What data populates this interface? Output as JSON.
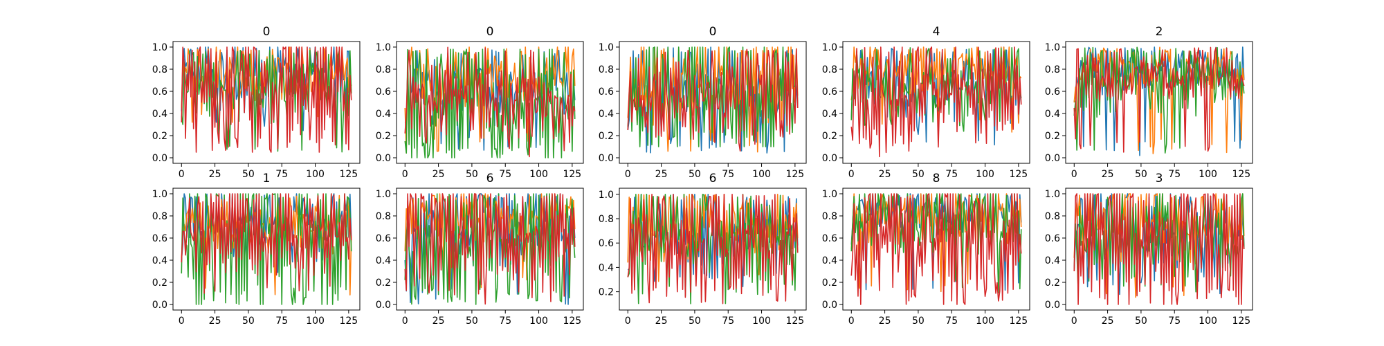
{
  "chart_data": {
    "type": "line",
    "layout": {
      "rows": 2,
      "cols": 5
    },
    "series_colors": [
      "#1f77b4",
      "#ff7f0e",
      "#2ca02c",
      "#d62728"
    ],
    "x_ticks": [
      0,
      25,
      50,
      75,
      100,
      125
    ],
    "xlim": [
      -6.35,
      133.35
    ],
    "panels": [
      {
        "title": "0",
        "ylim": [
          -0.05,
          1.05
        ],
        "y_ticks": [
          0.0,
          0.2,
          0.4,
          0.6,
          0.8,
          1.0
        ],
        "y_tick_labels": [
          "0.0",
          "0.2",
          "0.4",
          "0.6",
          "0.8",
          "1.0"
        ],
        "series": [
          {
            "seed": 11,
            "mean": 0.72,
            "spread": 0.2,
            "min": 0.22,
            "max": 1.0,
            "osc": 0.3
          },
          {
            "seed": 12,
            "mean": 0.75,
            "spread": 0.18,
            "min": 0.28,
            "max": 1.0,
            "osc": 0.3
          },
          {
            "seed": 13,
            "mean": 0.68,
            "spread": 0.22,
            "min": 0.0,
            "max": 0.97,
            "osc": 0.4
          },
          {
            "seed": 14,
            "mean": 0.62,
            "spread": 0.26,
            "min": 0.05,
            "max": 1.0,
            "osc": 0.9
          }
        ]
      },
      {
        "title": "0",
        "ylim": [
          -0.05,
          1.05
        ],
        "y_ticks": [
          0.0,
          0.2,
          0.4,
          0.6,
          0.8,
          1.0
        ],
        "y_tick_labels": [
          "0.0",
          "0.2",
          "0.4",
          "0.6",
          "0.8",
          "1.0"
        ],
        "series": [
          {
            "seed": 21,
            "mean": 0.62,
            "spread": 0.2,
            "min": 0.05,
            "max": 0.98,
            "osc": 0.3
          },
          {
            "seed": 22,
            "mean": 0.75,
            "spread": 0.18,
            "min": 0.03,
            "max": 1.0,
            "osc": 0.3
          },
          {
            "seed": 23,
            "mean": 0.45,
            "spread": 0.3,
            "min": 0.0,
            "max": 0.98,
            "osc": 0.8
          },
          {
            "seed": 24,
            "mean": 0.52,
            "spread": 0.2,
            "min": 0.0,
            "max": 1.0,
            "osc": 0.4
          }
        ]
      },
      {
        "title": "0",
        "ylim": [
          -0.05,
          1.05
        ],
        "y_ticks": [
          0.0,
          0.2,
          0.4,
          0.6,
          0.8,
          1.0
        ],
        "y_tick_labels": [
          "0.0",
          "0.2",
          "0.4",
          "0.6",
          "0.8",
          "1.0"
        ],
        "series": [
          {
            "seed": 31,
            "mean": 0.55,
            "spread": 0.25,
            "min": 0.0,
            "max": 1.0,
            "osc": 0.5
          },
          {
            "seed": 32,
            "mean": 0.66,
            "spread": 0.22,
            "min": 0.05,
            "max": 1.0,
            "osc": 0.5
          },
          {
            "seed": 33,
            "mean": 0.58,
            "spread": 0.28,
            "min": 0.1,
            "max": 1.0,
            "osc": 0.8
          },
          {
            "seed": 34,
            "mean": 0.55,
            "spread": 0.22,
            "min": 0.05,
            "max": 0.98,
            "osc": 0.5
          }
        ]
      },
      {
        "title": "4",
        "ylim": [
          -0.05,
          1.05
        ],
        "y_ticks": [
          0.0,
          0.2,
          0.4,
          0.6,
          0.8,
          1.0
        ],
        "y_tick_labels": [
          "0.0",
          "0.2",
          "0.4",
          "0.6",
          "0.8",
          "1.0"
        ],
        "series": [
          {
            "seed": 41,
            "mean": 0.66,
            "spread": 0.2,
            "min": 0.1,
            "max": 1.0,
            "osc": 0.5
          },
          {
            "seed": 42,
            "mean": 0.82,
            "spread": 0.14,
            "min": 0.2,
            "max": 1.0,
            "osc": 0.3
          },
          {
            "seed": 43,
            "mean": 0.64,
            "spread": 0.2,
            "min": 0.2,
            "max": 1.0,
            "osc": 0.4
          },
          {
            "seed": 44,
            "mean": 0.58,
            "spread": 0.22,
            "min": 0.0,
            "max": 1.0,
            "osc": 0.8
          }
        ]
      },
      {
        "title": "2",
        "ylim": [
          -0.05,
          1.05
        ],
        "y_ticks": [
          0.0,
          0.2,
          0.4,
          0.6,
          0.8,
          1.0
        ],
        "y_tick_labels": [
          "0.0",
          "0.2",
          "0.4",
          "0.6",
          "0.8",
          "1.0"
        ],
        "series": [
          {
            "seed": 51,
            "mean": 0.8,
            "spread": 0.14,
            "min": 0.0,
            "max": 1.0,
            "osc": 0.3
          },
          {
            "seed": 52,
            "mean": 0.8,
            "spread": 0.14,
            "min": 0.02,
            "max": 1.0,
            "osc": 0.3
          },
          {
            "seed": 53,
            "mean": 0.68,
            "spread": 0.18,
            "min": 0.0,
            "max": 1.0,
            "osc": 0.4
          },
          {
            "seed": 54,
            "mean": 0.75,
            "spread": 0.14,
            "min": 0.03,
            "max": 1.0,
            "osc": 0.4
          }
        ]
      },
      {
        "title": "1",
        "ylim": [
          -0.05,
          1.05
        ],
        "y_ticks": [
          0.0,
          0.2,
          0.4,
          0.6,
          0.8,
          1.0
        ],
        "y_tick_labels": [
          "0.0",
          "0.2",
          "0.4",
          "0.6",
          "0.8",
          "1.0"
        ],
        "series": [
          {
            "seed": 61,
            "mean": 0.7,
            "spread": 0.2,
            "min": 0.25,
            "max": 1.0,
            "osc": 0.4
          },
          {
            "seed": 62,
            "mean": 0.72,
            "spread": 0.16,
            "min": 0.05,
            "max": 1.0,
            "osc": 0.3
          },
          {
            "seed": 63,
            "mean": 0.58,
            "spread": 0.3,
            "min": 0.0,
            "max": 1.0,
            "osc": 0.9
          },
          {
            "seed": 64,
            "mean": 0.68,
            "spread": 0.2,
            "min": 0.1,
            "max": 1.0,
            "osc": 0.7
          }
        ]
      },
      {
        "title": "6",
        "ylim": [
          -0.05,
          1.05
        ],
        "y_ticks": [
          0.0,
          0.2,
          0.4,
          0.6,
          0.8,
          1.0
        ],
        "y_tick_labels": [
          "0.0",
          "0.2",
          "0.4",
          "0.6",
          "0.8",
          "1.0"
        ],
        "series": [
          {
            "seed": 71,
            "mean": 0.7,
            "spread": 0.22,
            "min": 0.0,
            "max": 1.0,
            "osc": 0.4
          },
          {
            "seed": 72,
            "mean": 0.78,
            "spread": 0.16,
            "min": 0.1,
            "max": 1.0,
            "osc": 0.3
          },
          {
            "seed": 73,
            "mean": 0.52,
            "spread": 0.25,
            "min": 0.0,
            "max": 1.0,
            "osc": 0.7
          },
          {
            "seed": 74,
            "mean": 0.62,
            "spread": 0.25,
            "min": 0.0,
            "max": 1.0,
            "osc": 0.8
          }
        ]
      },
      {
        "title": "6",
        "ylim": [
          0.05,
          1.05
        ],
        "y_ticks": [
          0.2,
          0.4,
          0.6,
          0.8,
          1.0
        ],
        "y_tick_labels": [
          "0.2",
          "0.4",
          "0.6",
          "0.8",
          "1.0"
        ],
        "series": [
          {
            "seed": 81,
            "mean": 0.68,
            "spread": 0.2,
            "min": 0.2,
            "max": 1.0,
            "osc": 0.5
          },
          {
            "seed": 82,
            "mean": 0.74,
            "spread": 0.18,
            "min": 0.25,
            "max": 1.0,
            "osc": 0.4
          },
          {
            "seed": 83,
            "mean": 0.62,
            "spread": 0.22,
            "min": 0.1,
            "max": 1.0,
            "osc": 0.6
          },
          {
            "seed": 84,
            "mean": 0.62,
            "spread": 0.22,
            "min": 0.1,
            "max": 1.0,
            "osc": 0.7
          }
        ]
      },
      {
        "title": "8",
        "ylim": [
          -0.05,
          1.05
        ],
        "y_ticks": [
          0.0,
          0.2,
          0.4,
          0.6,
          0.8,
          1.0
        ],
        "y_tick_labels": [
          "0.0",
          "0.2",
          "0.4",
          "0.6",
          "0.8",
          "1.0"
        ],
        "series": [
          {
            "seed": 91,
            "mean": 0.84,
            "spread": 0.14,
            "min": 0.1,
            "max": 1.0,
            "osc": 0.3
          },
          {
            "seed": 92,
            "mean": 0.8,
            "spread": 0.16,
            "min": 0.1,
            "max": 1.0,
            "osc": 0.4
          },
          {
            "seed": 93,
            "mean": 0.78,
            "spread": 0.2,
            "min": 0.1,
            "max": 1.0,
            "osc": 0.5
          },
          {
            "seed": 94,
            "mean": 0.56,
            "spread": 0.26,
            "min": 0.0,
            "max": 1.0,
            "osc": 0.9
          }
        ]
      },
      {
        "title": "3",
        "ylim": [
          -0.05,
          1.05
        ],
        "y_ticks": [
          0.0,
          0.2,
          0.4,
          0.6,
          0.8,
          1.0
        ],
        "y_tick_labels": [
          "0.0",
          "0.2",
          "0.4",
          "0.6",
          "0.8",
          "1.0"
        ],
        "series": [
          {
            "seed": 101,
            "mean": 0.62,
            "spread": 0.22,
            "min": 0.08,
            "max": 1.0,
            "osc": 0.6
          },
          {
            "seed": 102,
            "mean": 0.72,
            "spread": 0.2,
            "min": 0.05,
            "max": 1.0,
            "osc": 0.5
          },
          {
            "seed": 103,
            "mean": 0.6,
            "spread": 0.22,
            "min": 0.1,
            "max": 1.0,
            "osc": 0.5
          },
          {
            "seed": 104,
            "mean": 0.6,
            "spread": 0.28,
            "min": 0.0,
            "max": 1.0,
            "osc": 0.9
          }
        ]
      }
    ]
  }
}
